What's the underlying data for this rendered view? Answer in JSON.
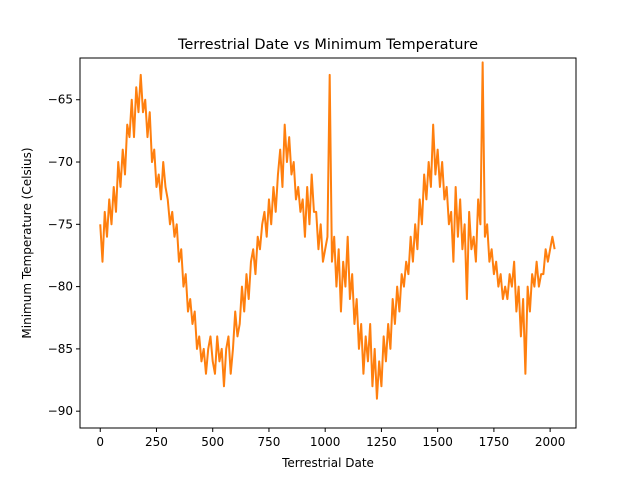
{
  "chart_data": {
    "type": "line",
    "title": "Terrestrial Date vs Minimum Temperature",
    "xlabel": "Terrestrial Date",
    "ylabel": "Minimum Temperature (Celsius)",
    "xlim": [
      -90,
      2115
    ],
    "ylim": [
      -91.35,
      -61.65
    ],
    "xticks": [
      0,
      250,
      500,
      750,
      1000,
      1250,
      1500,
      1750,
      2000
    ],
    "yticks": [
      -90,
      -85,
      -80,
      -75,
      -70,
      -65
    ],
    "grid": false,
    "legend": "none",
    "series": [
      {
        "color": "#ff7f0e",
        "x": [
          0,
          10,
          20,
          30,
          40,
          50,
          60,
          70,
          80,
          90,
          100,
          110,
          120,
          130,
          140,
          150,
          160,
          170,
          180,
          190,
          200,
          210,
          220,
          230,
          240,
          250,
          260,
          270,
          280,
          290,
          300,
          310,
          320,
          330,
          340,
          350,
          360,
          370,
          380,
          390,
          400,
          410,
          420,
          430,
          440,
          450,
          460,
          470,
          480,
          490,
          500,
          510,
          520,
          530,
          540,
          550,
          560,
          570,
          580,
          590,
          600,
          610,
          620,
          630,
          640,
          650,
          660,
          670,
          680,
          690,
          700,
          710,
          720,
          730,
          740,
          750,
          760,
          770,
          780,
          790,
          800,
          810,
          820,
          830,
          840,
          850,
          860,
          870,
          880,
          890,
          900,
          910,
          920,
          930,
          940,
          950,
          960,
          970,
          980,
          990,
          1000,
          1010,
          1020,
          1030,
          1040,
          1050,
          1060,
          1070,
          1080,
          1090,
          1100,
          1110,
          1120,
          1130,
          1140,
          1150,
          1160,
          1170,
          1180,
          1190,
          1200,
          1210,
          1220,
          1230,
          1240,
          1250,
          1260,
          1270,
          1280,
          1290,
          1300,
          1310,
          1320,
          1330,
          1340,
          1350,
          1360,
          1370,
          1380,
          1390,
          1400,
          1410,
          1420,
          1430,
          1440,
          1450,
          1460,
          1470,
          1480,
          1490,
          1500,
          1510,
          1520,
          1530,
          1540,
          1550,
          1560,
          1570,
          1580,
          1590,
          1600,
          1610,
          1620,
          1630,
          1640,
          1650,
          1660,
          1670,
          1680,
          1690,
          1700,
          1710,
          1720,
          1730,
          1740,
          1750,
          1760,
          1770,
          1780,
          1790,
          1800,
          1810,
          1820,
          1830,
          1840,
          1850,
          1860,
          1870,
          1880,
          1890,
          1900,
          1910,
          1920,
          1930,
          1940,
          1950,
          1960,
          1970,
          1980,
          1990,
          2000,
          2010,
          2020
        ],
        "y": [
          -75,
          -78,
          -74,
          -76,
          -73,
          -75,
          -72,
          -74,
          -70,
          -72,
          -69,
          -71,
          -67,
          -68,
          -65,
          -68,
          -64,
          -66,
          -63,
          -66,
          -65,
          -68,
          -66,
          -70,
          -69,
          -72,
          -71,
          -73,
          -70,
          -72,
          -73,
          -75,
          -74,
          -76,
          -75,
          -78,
          -77,
          -80,
          -79,
          -82,
          -81,
          -83,
          -82,
          -85,
          -84,
          -86,
          -85,
          -87,
          -85,
          -84,
          -86,
          -87,
          -84,
          -86,
          -85,
          -88,
          -85,
          -84,
          -87,
          -85,
          -82,
          -84,
          -83,
          -80,
          -82,
          -79,
          -81,
          -78,
          -77,
          -79,
          -76,
          -77,
          -75,
          -74,
          -76,
          -73,
          -75,
          -72,
          -74,
          -71,
          -69,
          -72,
          -67,
          -70,
          -68,
          -71,
          -70,
          -73,
          -72,
          -74,
          -73,
          -76,
          -72,
          -75,
          -71,
          -74,
          -74,
          -77,
          -75,
          -78,
          -77,
          -76,
          -63,
          -78,
          -76,
          -80,
          -77,
          -82,
          -78,
          -80,
          -76,
          -81,
          -79,
          -83,
          -81,
          -85,
          -83,
          -87,
          -84,
          -86,
          -83,
          -88,
          -85,
          -89,
          -86,
          -88,
          -84,
          -86,
          -83,
          -85,
          -81,
          -83,
          -80,
          -82,
          -79,
          -80,
          -78,
          -79,
          -76,
          -78,
          -75,
          -77,
          -73,
          -75,
          -71,
          -73,
          -70,
          -72,
          -67,
          -71,
          -69,
          -72,
          -70,
          -73,
          -72,
          -75,
          -74,
          -78,
          -72,
          -76,
          -73,
          -77,
          -75,
          -81,
          -74,
          -77,
          -76,
          -78,
          -73,
          -75,
          -62,
          -76,
          -75,
          -78,
          -77,
          -79,
          -78,
          -80,
          -79,
          -81,
          -80,
          -81,
          -79,
          -80,
          -78,
          -82,
          -80,
          -84,
          -81,
          -87,
          -80,
          -82,
          -79,
          -80,
          -78,
          -80,
          -79,
          -79,
          -77,
          -78,
          -77,
          -76,
          -77
        ]
      }
    ]
  }
}
